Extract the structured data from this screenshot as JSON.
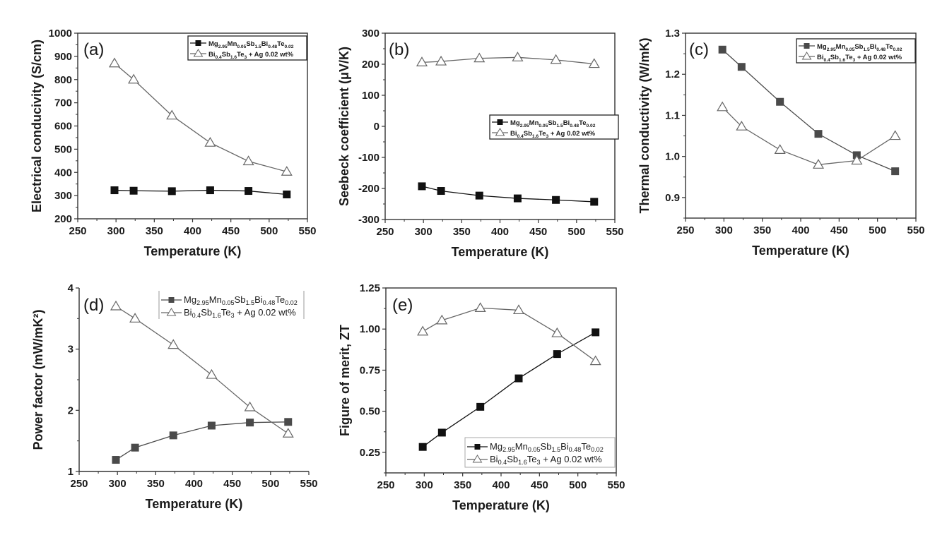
{
  "figure": {
    "x_axis_title": "Temperature (K)",
    "legend_series": [
      {
        "id": "mg",
        "label_parts": [
          [
            "Mg",
            ""
          ],
          [
            "2.95",
            "sub"
          ],
          [
            "Mn",
            ""
          ],
          [
            "0.05",
            "sub"
          ],
          [
            "Sb",
            ""
          ],
          [
            "1.5",
            "sub"
          ],
          [
            "Bi",
            ""
          ],
          [
            "0.48",
            "sub"
          ],
          [
            "Te",
            ""
          ],
          [
            "0.02",
            "sub"
          ]
        ],
        "marker": "square",
        "color": "#111111"
      },
      {
        "id": "bi",
        "label_parts": [
          [
            "Bi",
            ""
          ],
          [
            "0.4",
            "sub"
          ],
          [
            "Sb",
            ""
          ],
          [
            "1.6",
            "sub"
          ],
          [
            "Te",
            ""
          ],
          [
            "3",
            "sub"
          ],
          [
            " + Ag 0.02 wt%",
            ""
          ]
        ],
        "marker": "triangle",
        "color": "#555555"
      }
    ]
  },
  "chart_data": [
    {
      "panel": "(a)",
      "type": "line",
      "title": "",
      "xlabel": "Temperature (K)",
      "ylabel": "Electrical conducivity (S/cm)",
      "x": [
        298,
        323,
        373,
        423,
        473,
        523
      ],
      "xlim": [
        250,
        550
      ],
      "xticks": [
        250,
        300,
        350,
        400,
        450,
        500,
        550
      ],
      "ylim": [
        200,
        1000
      ],
      "yticks": [
        200,
        300,
        400,
        500,
        600,
        700,
        800,
        900,
        1000
      ],
      "ytick_labels": [
        "200",
        "300",
        "400",
        "500",
        "600",
        "700",
        "800",
        "900",
        "1000"
      ],
      "legend": "top-right",
      "series": [
        {
          "name": "Mg2.95Mn0.05Sb1.5Bi0.48Te0.02",
          "marker": "square",
          "values": [
            323,
            321,
            319,
            323,
            320,
            305
          ]
        },
        {
          "name": "Bi0.4Sb1.6Te3 + Ag 0.02 wt%",
          "marker": "triangle",
          "values": [
            870,
            800,
            645,
            528,
            448,
            403
          ]
        }
      ]
    },
    {
      "panel": "(b)",
      "type": "line",
      "title": "",
      "xlabel": "Temperature (K)",
      "ylabel": "Seebeck coefficient (μV/K)",
      "x": [
        298,
        323,
        373,
        423,
        473,
        523
      ],
      "xlim": [
        250,
        550
      ],
      "xticks": [
        250,
        300,
        350,
        400,
        450,
        500,
        550
      ],
      "ylim": [
        -300,
        300
      ],
      "yticks": [
        -300,
        -200,
        -100,
        0,
        100,
        200,
        300
      ],
      "ytick_labels": [
        "-300",
        "-200",
        "-100",
        "0",
        "100",
        "200",
        "300"
      ],
      "legend": "center-right",
      "series": [
        {
          "name": "Mg2.95Mn0.05Sb1.5Bi0.48Te0.02",
          "marker": "square",
          "values": [
            -193,
            -208,
            -223,
            -232,
            -237,
            -243
          ]
        },
        {
          "name": "Bi0.4Sb1.6Te3 + Ag 0.02 wt%",
          "marker": "triangle",
          "values": [
            206,
            209,
            219,
            222,
            214,
            201
          ]
        }
      ]
    },
    {
      "panel": "(c)",
      "type": "line",
      "title": "",
      "xlabel": "Temperature (K)",
      "ylabel": "Thermal conductivity (W/mK)",
      "x": [
        298,
        323,
        373,
        423,
        473,
        523
      ],
      "xlim": [
        250,
        550
      ],
      "xticks": [
        250,
        300,
        350,
        400,
        450,
        500,
        550
      ],
      "ylim": [
        0.85,
        1.3
      ],
      "yticks": [
        0.9,
        1.0,
        1.1,
        1.2,
        1.3
      ],
      "ytick_labels": [
        "0.9",
        "1.0",
        "1.1",
        "1.2",
        "1.3"
      ],
      "legend": "top-right",
      "series": [
        {
          "name": "Mg2.95Mn0.05Sb1.5Bi0.48Te0.02",
          "marker": "square",
          "values": [
            1.26,
            1.218,
            1.133,
            1.055,
            1.003,
            0.964
          ]
        },
        {
          "name": "Bi0.4Sb1.6Te3 + Ag 0.02 wt%",
          "marker": "triangle",
          "values": [
            1.12,
            1.073,
            1.016,
            0.98,
            0.99,
            1.05
          ]
        }
      ]
    },
    {
      "panel": "(d)",
      "type": "line",
      "title": "",
      "xlabel": "Temperature (K)",
      "ylabel": "Power factor (mW/mK²)",
      "x": [
        298,
        323,
        373,
        423,
        473,
        523
      ],
      "xlim": [
        250,
        550
      ],
      "xticks": [
        250,
        300,
        350,
        400,
        450,
        500,
        550
      ],
      "ylim": [
        1,
        4
      ],
      "yticks": [
        1,
        2,
        3,
        4
      ],
      "ytick_labels": [
        "1",
        "2",
        "3",
        "4"
      ],
      "legend": "top-right",
      "series": [
        {
          "name": "Mg2.95Mn0.05Sb1.5Bi0.48Te0.02",
          "marker": "square",
          "values": [
            1.19,
            1.39,
            1.59,
            1.75,
            1.8,
            1.81
          ]
        },
        {
          "name": "Bi0.4Sb1.6Te3 + Ag 0.02 wt%",
          "marker": "triangle",
          "values": [
            3.7,
            3.5,
            3.07,
            2.58,
            2.05,
            1.62
          ]
        }
      ]
    },
    {
      "panel": "(e)",
      "type": "line",
      "title": "",
      "xlabel": "Temperature (K)",
      "ylabel": "Figure of merit, ZT",
      "x": [
        298,
        323,
        373,
        423,
        473,
        523
      ],
      "xlim": [
        250,
        550
      ],
      "xticks": [
        250,
        300,
        350,
        400,
        450,
        500,
        550
      ],
      "ylim": [
        0.125,
        1.25
      ],
      "yticks": [
        0.25,
        0.5,
        0.75,
        1.0,
        1.25
      ],
      "ytick_labels": [
        "0.25",
        "0.50",
        "0.75",
        "1.00",
        "1.25"
      ],
      "legend": "bottom-right",
      "series": [
        {
          "name": "Mg2.95Mn0.05Sb1.5Bi0.48Te0.02",
          "marker": "square",
          "values": [
            0.283,
            0.37,
            0.527,
            0.7,
            0.848,
            0.98
          ]
        },
        {
          "name": "Bi0.4Sb1.6Te3 + Ag 0.02 wt%",
          "marker": "triangle",
          "values": [
            0.985,
            1.053,
            1.128,
            1.115,
            0.975,
            0.805
          ]
        }
      ]
    }
  ]
}
